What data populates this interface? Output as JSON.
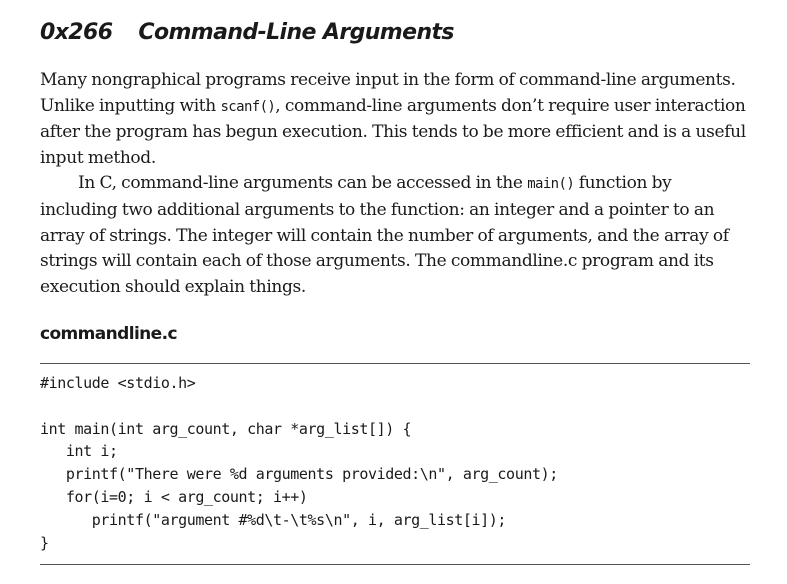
{
  "section": {
    "number": "0x266",
    "title": "Command-Line Arguments"
  },
  "paragraph1": {
    "t1": "Many nongraphical programs receive input in the form of command-line arguments. Unlike inputting with ",
    "c1": "scanf()",
    "t2": ", command-line arguments don’t require user interaction after the program has begun execution. This tends to be more efficient and is a useful input method."
  },
  "paragraph2": {
    "t1": "In C, command-line arguments can be accessed in the ",
    "c1": "main()",
    "t2": " function by including two additional arguments to the function: an integer and a pointer to an array of strings. The integer will contain the number of arguments, and the array of strings will contain each of those arguments. The commandline.c program and its execution should explain things."
  },
  "listing": {
    "title": "commandline.c",
    "code": "#include <stdio.h>\n\nint main(int arg_count, char *arg_list[]) {\n   int i;\n   printf(\"There were %d arguments provided:\\n\", arg_count);\n   for(i=0; i < arg_count; i++)\n      printf(\"argument #%d\\t-\\t%s\\n\", i, arg_list[i]);\n}"
  }
}
